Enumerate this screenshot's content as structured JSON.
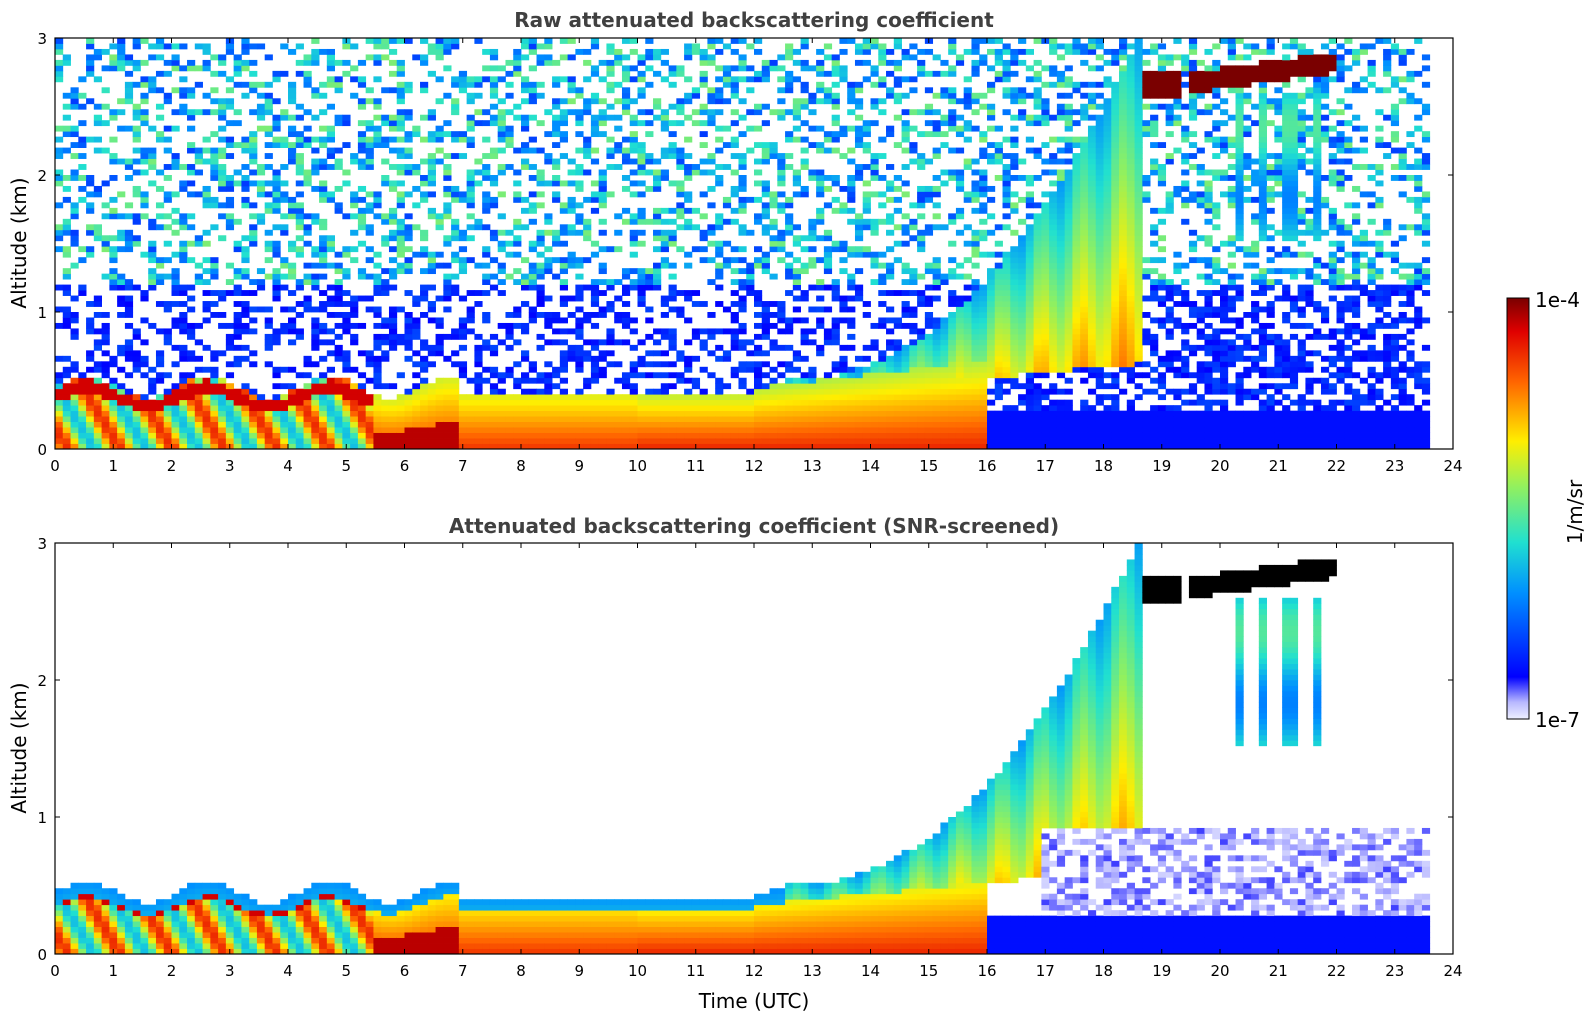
{
  "chart_data": [
    {
      "type": "heatmap",
      "title": "Raw attenuated backscattering coefficient",
      "xlabel": "",
      "ylabel": "Altitude (km)",
      "xlim": [
        0,
        24
      ],
      "ylim": [
        0,
        3
      ],
      "x_ticks": [
        "0",
        "1",
        "2",
        "3",
        "4",
        "5",
        "6",
        "7",
        "8",
        "9",
        "10",
        "11",
        "12",
        "13",
        "14",
        "15",
        "16",
        "17",
        "18",
        "19",
        "20",
        "21",
        "22",
        "23",
        "24"
      ],
      "y_ticks": [
        "0",
        "1",
        "2",
        "3"
      ],
      "layers": [
        {
          "name": "boundary-layer",
          "t0": 0,
          "t1": 15.8,
          "top_km": 0.45,
          "level": 0.85
        },
        {
          "name": "aerosol-plume",
          "t0": 12.5,
          "t1": 18.6,
          "top_km": 3.0,
          "level": 0.7
        },
        {
          "name": "cloud-layer",
          "t0": 18.6,
          "t1": 22.0,
          "alt_km": 2.75,
          "level": 1.0
        },
        {
          "name": "low-signal",
          "t0": 16.0,
          "t1": 23.6,
          "top_km": 0.3,
          "level": 0.15
        }
      ],
      "noise": "raw"
    },
    {
      "type": "heatmap",
      "title": "Attenuated backscattering coefficient (SNR-screened)",
      "xlabel": "Time (UTC)",
      "ylabel": "Altitude (km)",
      "xlim": [
        0,
        24
      ],
      "ylim": [
        0,
        3
      ],
      "x_ticks": [
        "0",
        "1",
        "2",
        "3",
        "4",
        "5",
        "6",
        "7",
        "8",
        "9",
        "10",
        "11",
        "12",
        "13",
        "14",
        "15",
        "16",
        "17",
        "18",
        "19",
        "20",
        "21",
        "22",
        "23",
        "24"
      ],
      "y_ticks": [
        "0",
        "1",
        "2",
        "3"
      ],
      "layers": [
        {
          "name": "boundary-layer",
          "t0": 0,
          "t1": 15.8,
          "top_km": 0.45,
          "level": 0.85
        },
        {
          "name": "aerosol-plume",
          "t0": 12.5,
          "t1": 18.6,
          "top_km": 3.0,
          "level": 0.7
        },
        {
          "name": "cloud-layer",
          "t0": 18.6,
          "t1": 22.0,
          "alt_km": 2.75,
          "level": 1.0
        },
        {
          "name": "low-signal",
          "t0": 16.0,
          "t1": 23.6,
          "top_km": 0.3,
          "level": 0.15
        }
      ],
      "noise": "screened"
    }
  ],
  "colorbar": {
    "label": "1/m/sr",
    "max_label": "1e-4",
    "min_label": "1e-7",
    "colormap": "jet"
  }
}
